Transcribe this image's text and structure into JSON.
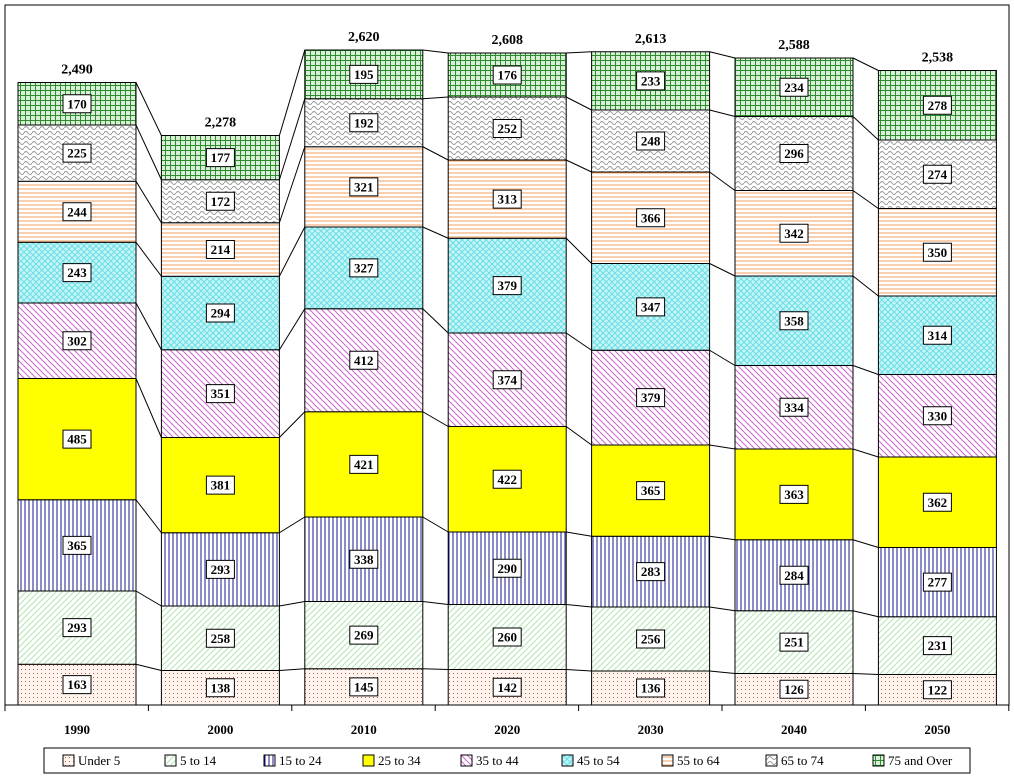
{
  "chart_data": {
    "type": "bar",
    "stacked": true,
    "categories": [
      "1990",
      "2000",
      "2010",
      "2020",
      "2030",
      "2040",
      "2050"
    ],
    "totals": [
      "2,490",
      "2,278",
      "2,620",
      "2,608",
      "2,613",
      "2,588",
      "2,538"
    ],
    "series": [
      {
        "name": "Under 5",
        "values": [
          163,
          138,
          145,
          142,
          136,
          126,
          122
        ],
        "color": "#ffe0d0",
        "pattern": "dots"
      },
      {
        "name": "5 to 14",
        "values": [
          293,
          258,
          269,
          260,
          256,
          251,
          231
        ],
        "color": "#b3e6b3",
        "pattern": "diag-up"
      },
      {
        "name": "15 to 24",
        "values": [
          365,
          293,
          338,
          290,
          283,
          284,
          277
        ],
        "color": "#1a1a8c",
        "pattern": "vertical"
      },
      {
        "name": "25 to 34",
        "values": [
          485,
          381,
          421,
          422,
          365,
          363,
          362
        ],
        "color": "#ffff00",
        "pattern": "solid"
      },
      {
        "name": "35 to 44",
        "values": [
          302,
          351,
          412,
          374,
          379,
          334,
          330
        ],
        "color": "#cc66cc",
        "pattern": "diag-down"
      },
      {
        "name": "45 to 54",
        "values": [
          243,
          294,
          327,
          379,
          347,
          358,
          314
        ],
        "color": "#66e0e6",
        "pattern": "cross"
      },
      {
        "name": "55 to 64",
        "values": [
          244,
          214,
          321,
          313,
          366,
          342,
          350
        ],
        "color": "#f0a060",
        "pattern": "horizontal"
      },
      {
        "name": "65 to 74",
        "values": [
          225,
          172,
          192,
          252,
          248,
          296,
          274
        ],
        "color": "#999999",
        "pattern": "wave"
      },
      {
        "name": "75 and Over",
        "values": [
          170,
          177,
          195,
          176,
          233,
          234,
          278
        ],
        "color": "#2e8b2e",
        "pattern": "grid"
      }
    ],
    "ylim": [
      0,
      2620
    ],
    "legend_position": "bottom",
    "grid": false,
    "title": "",
    "xlabel": "",
    "ylabel": ""
  }
}
